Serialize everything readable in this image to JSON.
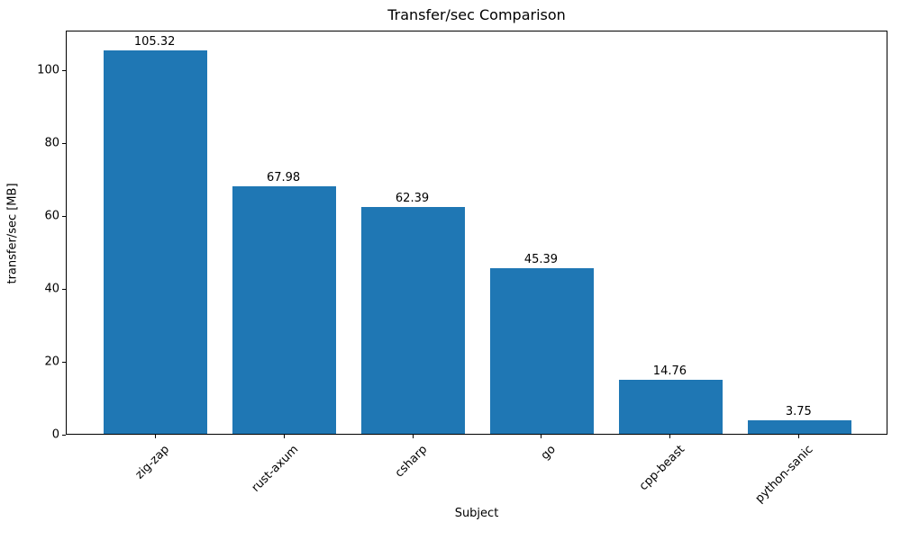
{
  "chart_data": {
    "type": "bar",
    "title": "Transfer/sec Comparison",
    "xlabel": "Subject",
    "ylabel": "transfer/sec [MB]",
    "categories": [
      "zig-zap",
      "rust-axum",
      "csharp",
      "go",
      "cpp-beast",
      "python-sanic"
    ],
    "values": [
      105.32,
      67.98,
      62.39,
      45.39,
      14.76,
      3.75
    ],
    "value_labels": [
      "105.32",
      "67.98",
      "62.39",
      "45.39",
      "14.76",
      "3.75"
    ],
    "yticks": [
      0,
      20,
      40,
      60,
      80,
      100
    ],
    "ylim": [
      0,
      111
    ],
    "bar_color": "#1f77b4",
    "grid": false,
    "legend": null,
    "x_tick_rotation_deg": 45
  }
}
